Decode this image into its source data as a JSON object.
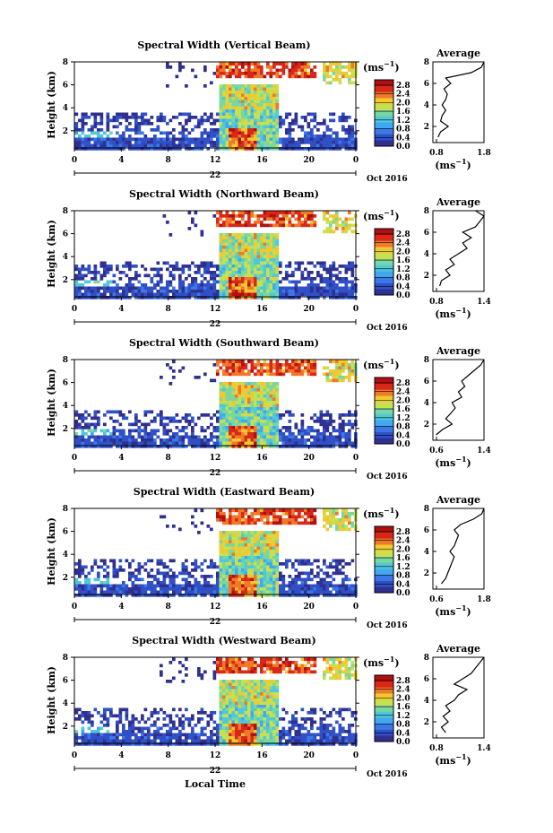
{
  "figure": {
    "xlabel_bottom": "Local Time",
    "colorbar_unit": "(ms",
    "colorbar_unit_exp": "−1",
    "colorbar_ticks": [
      "0.0",
      "0.4",
      "0.8",
      "1.2",
      "1.6",
      "2.0",
      "2.4",
      "2.8"
    ],
    "colorbar_range": [
      0.0,
      2.8
    ],
    "x_ticks": [
      "0",
      "4",
      "8",
      "12",
      "16",
      "20",
      "0"
    ],
    "day_label": "22",
    "month_label": "Oct 2016",
    "y_ticks": [
      "2",
      "4",
      "6",
      "8"
    ],
    "ylabel": "Height (km)",
    "avg_title": "Average",
    "avg_xlabel": "(ms",
    "colors": {
      "scale": [
        "#303090",
        "#3050c8",
        "#3c78e6",
        "#40a8f0",
        "#50c8d8",
        "#78d8a0",
        "#c8e050",
        "#f0c830",
        "#f07828",
        "#d82818",
        "#b01010"
      ]
    }
  },
  "chart_data": [
    {
      "type": "heatmap",
      "title": "Spectral Width (Vertical Beam)",
      "xlabel": "Local Time",
      "ylabel": "Height (km)",
      "xlim": [
        0,
        24
      ],
      "ylim": [
        0.5,
        8
      ],
      "zlim": [
        0.0,
        2.8
      ],
      "profile": {
        "title": "Average",
        "xlim": [
          0.8,
          1.8
        ],
        "x_ticks": [
          "0.8",
          "1.8"
        ],
        "heights": [
          1.0,
          1.5,
          2.0,
          2.5,
          3.0,
          3.5,
          4.0,
          4.5,
          5.0,
          5.5,
          6.0,
          6.5,
          7.0,
          7.5,
          8.0
        ],
        "values": [
          0.9,
          0.95,
          1.1,
          0.95,
          0.98,
          1.05,
          0.98,
          1.05,
          1.08,
          1.02,
          1.15,
          1.05,
          1.55,
          1.75,
          1.8
        ]
      }
    },
    {
      "type": "heatmap",
      "title": "Spectral Width (Northward Beam)",
      "xlabel": "Local Time",
      "ylabel": "Height (km)",
      "xlim": [
        0,
        24
      ],
      "ylim": [
        0.5,
        8
      ],
      "zlim": [
        0.0,
        2.8
      ],
      "profile": {
        "title": "Average",
        "xlim": [
          0.8,
          1.4
        ],
        "x_ticks": [
          "0.8",
          "1.4"
        ],
        "heights": [
          1.0,
          1.5,
          2.0,
          2.5,
          3.0,
          3.5,
          4.0,
          4.5,
          5.0,
          5.5,
          6.0,
          6.5,
          7.0,
          7.5,
          8.0
        ],
        "values": [
          0.88,
          0.9,
          1.0,
          0.95,
          1.05,
          1.0,
          1.1,
          1.2,
          1.15,
          1.25,
          1.15,
          1.3,
          1.35,
          1.4,
          1.3
        ]
      }
    },
    {
      "type": "heatmap",
      "title": "Spectral Width (Southward Beam)",
      "xlabel": "Local Time",
      "ylabel": "Height (km)",
      "xlim": [
        0,
        24
      ],
      "ylim": [
        0.5,
        8
      ],
      "zlim": [
        0.0,
        2.8
      ],
      "profile": {
        "title": "Average",
        "xlim": [
          0.6,
          1.4
        ],
        "x_ticks": [
          "0.6",
          "1.4"
        ],
        "heights": [
          1.0,
          1.5,
          2.0,
          2.5,
          3.0,
          3.5,
          4.0,
          4.5,
          5.0,
          5.5,
          6.0,
          6.5,
          7.0,
          7.5,
          8.0
        ],
        "values": [
          0.65,
          0.75,
          0.9,
          0.8,
          0.88,
          0.95,
          0.9,
          1.05,
          1.0,
          1.1,
          1.05,
          1.15,
          1.25,
          1.35,
          1.4
        ]
      }
    },
    {
      "type": "heatmap",
      "title": "Spectral Width (Eastward Beam)",
      "xlabel": "Local Time",
      "ylabel": "Height (km)",
      "xlim": [
        0,
        24
      ],
      "ylim": [
        0.5,
        8
      ],
      "zlim": [
        0.0,
        2.8
      ],
      "profile": {
        "title": "Average",
        "xlim": [
          0.6,
          1.8
        ],
        "x_ticks": [
          "0.6",
          "1.8"
        ],
        "heights": [
          1.0,
          1.5,
          2.0,
          2.5,
          3.0,
          3.5,
          4.0,
          4.5,
          5.0,
          5.5,
          6.0,
          6.5,
          7.0,
          7.5,
          8.0
        ],
        "values": [
          0.8,
          0.9,
          0.95,
          1.0,
          1.05,
          1.1,
          1.0,
          1.1,
          1.15,
          1.2,
          1.1,
          1.25,
          1.55,
          1.75,
          1.8
        ]
      }
    },
    {
      "type": "heatmap",
      "title": "Spectral Width (Westward Beam)",
      "xlabel": "Local Time",
      "ylabel": "Height (km)",
      "xlim": [
        0,
        24
      ],
      "ylim": [
        0.5,
        8
      ],
      "zlim": [
        0.0,
        2.8
      ],
      "profile": {
        "title": "Average",
        "xlim": [
          0.8,
          1.4
        ],
        "x_ticks": [
          "0.8",
          "1.4"
        ],
        "heights": [
          1.0,
          1.5,
          2.0,
          2.5,
          3.0,
          3.5,
          4.0,
          4.5,
          5.0,
          5.5,
          6.0,
          6.5,
          7.0,
          7.5,
          8.0
        ],
        "values": [
          0.95,
          0.9,
          0.98,
          0.92,
          1.0,
          0.95,
          1.05,
          1.1,
          1.2,
          1.05,
          1.15,
          1.25,
          1.3,
          1.35,
          1.4
        ]
      }
    }
  ]
}
